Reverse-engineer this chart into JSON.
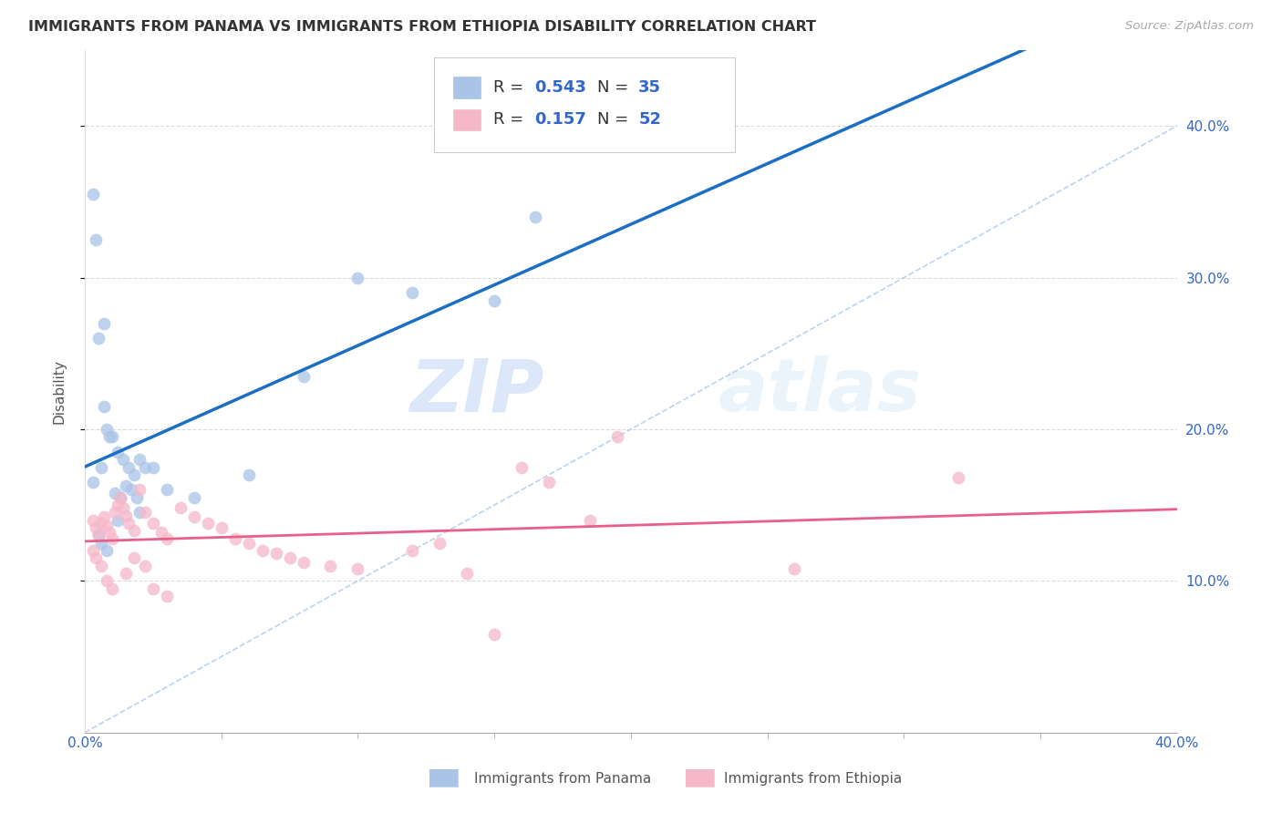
{
  "title": "IMMIGRANTS FROM PANAMA VS IMMIGRANTS FROM ETHIOPIA DISABILITY CORRELATION CHART",
  "source": "Source: ZipAtlas.com",
  "ylabel": "Disability",
  "xlim": [
    0.0,
    0.4
  ],
  "ylim": [
    0.0,
    0.45
  ],
  "yticks": [
    0.1,
    0.2,
    0.3,
    0.4
  ],
  "ytick_labels": [
    "10.0%",
    "20.0%",
    "30.0%",
    "40.0%"
  ],
  "watermark_zip": "ZIP",
  "watermark_atlas": "atlas",
  "legend_entries": [
    {
      "label": "Immigrants from Panama",
      "color": "#aac4e8",
      "R": "0.543",
      "N": "35"
    },
    {
      "label": "Immigrants from Ethiopia",
      "color": "#f5b8ca",
      "R": "0.157",
      "N": "52"
    }
  ],
  "panama_scatter_x": [
    0.003,
    0.006,
    0.008,
    0.01,
    0.012,
    0.014,
    0.016,
    0.018,
    0.02,
    0.022,
    0.005,
    0.007,
    0.009,
    0.011,
    0.013,
    0.015,
    0.017,
    0.019,
    0.025,
    0.03,
    0.005,
    0.006,
    0.008,
    0.012,
    0.02,
    0.04,
    0.06,
    0.08,
    0.1,
    0.12,
    0.003,
    0.004,
    0.007,
    0.15,
    0.165
  ],
  "panama_scatter_y": [
    0.165,
    0.175,
    0.2,
    0.195,
    0.185,
    0.18,
    0.175,
    0.17,
    0.18,
    0.175,
    0.26,
    0.215,
    0.195,
    0.158,
    0.155,
    0.163,
    0.16,
    0.155,
    0.175,
    0.16,
    0.13,
    0.125,
    0.12,
    0.14,
    0.145,
    0.155,
    0.17,
    0.235,
    0.3,
    0.29,
    0.355,
    0.325,
    0.27,
    0.285,
    0.34
  ],
  "ethiopia_scatter_x": [
    0.003,
    0.004,
    0.005,
    0.006,
    0.007,
    0.008,
    0.009,
    0.01,
    0.011,
    0.012,
    0.013,
    0.014,
    0.015,
    0.016,
    0.018,
    0.02,
    0.022,
    0.025,
    0.028,
    0.03,
    0.035,
    0.04,
    0.045,
    0.05,
    0.055,
    0.06,
    0.065,
    0.07,
    0.075,
    0.08,
    0.09,
    0.1,
    0.12,
    0.13,
    0.14,
    0.16,
    0.17,
    0.185,
    0.003,
    0.004,
    0.006,
    0.008,
    0.01,
    0.015,
    0.018,
    0.022,
    0.025,
    0.03,
    0.26,
    0.32,
    0.15,
    0.195
  ],
  "ethiopia_scatter_y": [
    0.14,
    0.135,
    0.13,
    0.138,
    0.142,
    0.136,
    0.132,
    0.128,
    0.145,
    0.15,
    0.155,
    0.148,
    0.143,
    0.138,
    0.133,
    0.16,
    0.145,
    0.138,
    0.132,
    0.128,
    0.148,
    0.142,
    0.138,
    0.135,
    0.128,
    0.125,
    0.12,
    0.118,
    0.115,
    0.112,
    0.11,
    0.108,
    0.12,
    0.125,
    0.105,
    0.175,
    0.165,
    0.14,
    0.12,
    0.115,
    0.11,
    0.1,
    0.095,
    0.105,
    0.115,
    0.11,
    0.095,
    0.09,
    0.108,
    0.168,
    0.065,
    0.195
  ],
  "panama_line_color": "#1a6fc4",
  "ethiopia_line_color": "#e8608a",
  "panama_dot_color": "#aac4e8",
  "ethiopia_dot_color": "#f5b8ca",
  "diag_dash_color": "#a8c8f0",
  "background_color": "#ffffff",
  "grid_color": "#cccccc",
  "legend_R_color": "#222222",
  "legend_val_color": "#3366cc",
  "legend_N_color": "#222222",
  "legend_N_val_color": "#3366cc",
  "axis_color": "#3366cc",
  "label_color": "#555555"
}
